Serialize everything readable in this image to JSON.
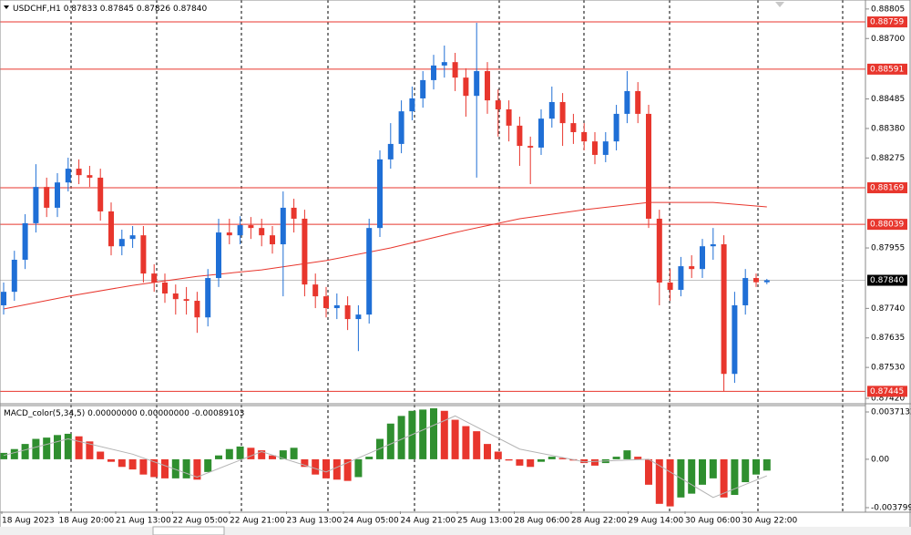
{
  "chart_data": {
    "type": "candlestick",
    "symbol": "USDCHF,H1",
    "last_ohlc_labels": [
      "0.87833",
      "0.87845",
      "0.87826",
      "0.87840"
    ],
    "up_color": "#1f6fd6",
    "down_color": "#e8362d",
    "candles": [
      [
        0.87751,
        0.87832,
        0.87718,
        0.87799
      ],
      [
        0.87799,
        0.87945,
        0.87767,
        0.87913
      ],
      [
        0.87913,
        0.88075,
        0.8788,
        0.88043
      ],
      [
        0.88043,
        0.88253,
        0.8801,
        0.88172
      ],
      [
        0.88172,
        0.88205,
        0.88065,
        0.88098
      ],
      [
        0.88098,
        0.88221,
        0.88065,
        0.88188
      ],
      [
        0.88188,
        0.88276,
        0.88156,
        0.88237
      ],
      [
        0.88237,
        0.8827,
        0.88182,
        0.88214
      ],
      [
        0.88214,
        0.88247,
        0.88172,
        0.88205
      ],
      [
        0.88205,
        0.88237,
        0.88052,
        0.88085
      ],
      [
        0.88085,
        0.88117,
        0.87929,
        0.87961
      ],
      [
        0.87961,
        0.8802,
        0.87929,
        0.87987
      ],
      [
        0.87987,
        0.88033,
        0.87955,
        0.88
      ],
      [
        0.88,
        0.88033,
        0.87832,
        0.87864
      ],
      [
        0.87864,
        0.87897,
        0.87799,
        0.87832
      ],
      [
        0.87832,
        0.87864,
        0.8776,
        0.87793
      ],
      [
        0.87793,
        0.87825,
        0.87718,
        0.87773
      ],
      [
        0.87773,
        0.87816,
        0.87718,
        0.87767
      ],
      [
        0.87767,
        0.87799,
        0.87653,
        0.87708
      ],
      [
        0.87708,
        0.8788,
        0.87676,
        0.87848
      ],
      [
        0.87848,
        0.88059,
        0.87816,
        0.8801
      ],
      [
        0.8801,
        0.88059,
        0.87968,
        0.88
      ],
      [
        0.88,
        0.88068,
        0.87968,
        0.88036
      ],
      [
        0.88036,
        0.88065,
        0.87987,
        0.88026
      ],
      [
        0.88026,
        0.88059,
        0.87961,
        0.88
      ],
      [
        0.88,
        0.88033,
        0.87935,
        0.87968
      ],
      [
        0.87968,
        0.88156,
        0.87783,
        0.88098
      ],
      [
        0.88098,
        0.8813,
        0.8801,
        0.88059
      ],
      [
        0.88059,
        0.88091,
        0.87783,
        0.87825
      ],
      [
        0.87825,
        0.87864,
        0.87741,
        0.87783
      ],
      [
        0.87783,
        0.87816,
        0.87708,
        0.87741
      ],
      [
        0.87741,
        0.87793,
        0.87702,
        0.87751
      ],
      [
        0.87751,
        0.87783,
        0.87663,
        0.87702
      ],
      [
        0.87702,
        0.87751,
        0.87588,
        0.87718
      ],
      [
        0.87718,
        0.88059,
        0.87686,
        0.88026
      ],
      [
        0.88026,
        0.88302,
        0.87994,
        0.8827
      ],
      [
        0.8827,
        0.88399,
        0.88237,
        0.88325
      ],
      [
        0.88325,
        0.8848,
        0.88292,
        0.88441
      ],
      [
        0.88441,
        0.88529,
        0.88409,
        0.88487
      ],
      [
        0.88487,
        0.88584,
        0.88454,
        0.88552
      ],
      [
        0.88552,
        0.88642,
        0.88519,
        0.88604
      ],
      [
        0.88604,
        0.88675,
        0.88561,
        0.88616
      ],
      [
        0.88616,
        0.88649,
        0.88513,
        0.88561
      ],
      [
        0.88561,
        0.88594,
        0.88422,
        0.88496
      ],
      [
        0.88496,
        0.88756,
        0.88205,
        0.88584
      ],
      [
        0.88584,
        0.88616,
        0.88432,
        0.8848
      ],
      [
        0.8848,
        0.88519,
        0.88351,
        0.88448
      ],
      [
        0.88448,
        0.8848,
        0.88334,
        0.8839
      ],
      [
        0.8839,
        0.88422,
        0.88247,
        0.88318
      ],
      [
        0.88318,
        0.88351,
        0.88182,
        0.88312
      ],
      [
        0.88312,
        0.88448,
        0.88286,
        0.88415
      ],
      [
        0.88415,
        0.88529,
        0.88383,
        0.88474
      ],
      [
        0.88474,
        0.88506,
        0.88318,
        0.88399
      ],
      [
        0.88399,
        0.88432,
        0.88325,
        0.88367
      ],
      [
        0.88367,
        0.88399,
        0.88302,
        0.88334
      ],
      [
        0.88334,
        0.88367,
        0.88253,
        0.88286
      ],
      [
        0.88286,
        0.88367,
        0.8826,
        0.88334
      ],
      [
        0.88334,
        0.88464,
        0.88302,
        0.88432
      ],
      [
        0.88432,
        0.88584,
        0.88399,
        0.88513
      ],
      [
        0.88513,
        0.88545,
        0.88399,
        0.88432
      ],
      [
        0.88432,
        0.88464,
        0.88026,
        0.88059
      ],
      [
        0.88059,
        0.88091,
        0.87751,
        0.87832
      ],
      [
        0.87832,
        0.8788,
        0.87767,
        0.87806
      ],
      [
        0.87806,
        0.87923,
        0.87783,
        0.8789
      ],
      [
        0.8789,
        0.87929,
        0.87848,
        0.8788
      ],
      [
        0.8788,
        0.87987,
        0.87848,
        0.87961
      ],
      [
        0.87961,
        0.88026,
        0.87913,
        0.87968
      ],
      [
        0.87968,
        0.88,
        0.87445,
        0.87507
      ],
      [
        0.87507,
        0.87799,
        0.87475,
        0.87751
      ],
      [
        0.87751,
        0.8788,
        0.87718,
        0.87848
      ],
      [
        0.87848,
        0.87864,
        0.87816,
        0.87833
      ],
      [
        0.87833,
        0.87845,
        0.87826,
        0.8784
      ]
    ],
    "ylim": [
      0.87404,
      0.88837
    ],
    "yticks": [
      0.88805,
      {
        "value": 0.887,
        "label": "0.88700"
      },
      0.88485,
      {
        "value": 0.8838,
        "label": "0.88380"
      },
      0.88275,
      0.87955,
      {
        "value": 0.8774,
        "label": "0.87740"
      },
      0.87635,
      {
        "value": 0.8753,
        "label": "0.87530"
      },
      {
        "value": 0.8742,
        "label": "0.87420"
      }
    ],
    "levels": {
      "color": "#e8362d",
      "values": [
        0.88759,
        0.88591,
        0.88169,
        0.88039,
        0.87445
      ]
    },
    "current_price": {
      "value": 0.8784,
      "label": "0.87840"
    },
    "ma": {
      "color": "#e8362d",
      "index": [
        0,
        6,
        12,
        18,
        24,
        30,
        36,
        42,
        48,
        54,
        60,
        66,
        71
      ],
      "values": [
        0.87738,
        0.87783,
        0.87822,
        0.87854,
        0.87877,
        0.8791,
        0.87955,
        0.8801,
        0.88059,
        0.88091,
        0.88117,
        0.88117,
        0.88101
      ]
    },
    "x_labels": [
      "18 Aug 2023",
      "18 Aug 20:00",
      "21 Aug 13:00",
      "22 Aug 05:00",
      "22 Aug 21:00",
      "23 Aug 13:00",
      "24 Aug 05:00",
      "24 Aug 21:00",
      "25 Aug 13:00",
      "28 Aug 06:00",
      "28 Aug 22:00",
      "29 Aug 14:00",
      "30 Aug 06:00",
      "30 Aug 22:00"
    ],
    "macd": {
      "title": "MACD_color(5,34,5) 0.00000000 0.00000000",
      "up_color": "#2f8f2f",
      "down_color": "#e8362d",
      "values": [
        0.0005,
        0.0008,
        0.0012,
        0.0016,
        0.0017,
        0.0019,
        0.002,
        0.0018,
        0.0014,
        0.0006,
        -0.0002,
        -0.0006,
        -0.0008,
        -0.0012,
        -0.0014,
        -0.0015,
        -0.0015,
        -0.0015,
        -0.0016,
        -0.001,
        0.0003,
        0.0008,
        0.001,
        0.0009,
        0.0007,
        0.0003,
        0.0007,
        0.0009,
        -0.0006,
        -0.0012,
        -0.0015,
        -0.0016,
        -0.0017,
        -0.0014,
        0.0002,
        0.0016,
        0.0028,
        0.0034,
        0.0038,
        0.0039,
        0.004,
        0.0038,
        0.0031,
        0.0026,
        0.0022,
        0.0012,
        0.0006,
        -0.0001,
        -0.0005,
        -0.0006,
        -0.0002,
        0.0002,
        0.0001,
        -0.0001,
        -0.0003,
        -0.0005,
        -0.0003,
        0.0002,
        0.0007,
        0.0002,
        -0.002,
        -0.0035,
        -0.0037,
        -0.003,
        -0.0027,
        -0.002,
        -0.0015,
        -0.003,
        -0.0028,
        -0.0018,
        -0.0012,
        -0.00089103
      ],
      "signal_color": "#b4b4b4",
      "signal_index": [
        0,
        6,
        12,
        18,
        24,
        30,
        36,
        42,
        48,
        54,
        60,
        66,
        71
      ],
      "signal": [
        0.0003,
        0.0016,
        0.0004,
        -0.0014,
        0.0006,
        -0.001,
        0.0012,
        0.0034,
        0.0008,
        -0.0002,
        0,
        -0.003,
        -0.0013
      ],
      "ylim": [
        -0.004085,
        0.004213
      ],
      "yticks": [
        0.0037132,
        {
          "value": 0,
          "label": "0.00"
        },
        -0.0037992
      ]
    }
  }
}
